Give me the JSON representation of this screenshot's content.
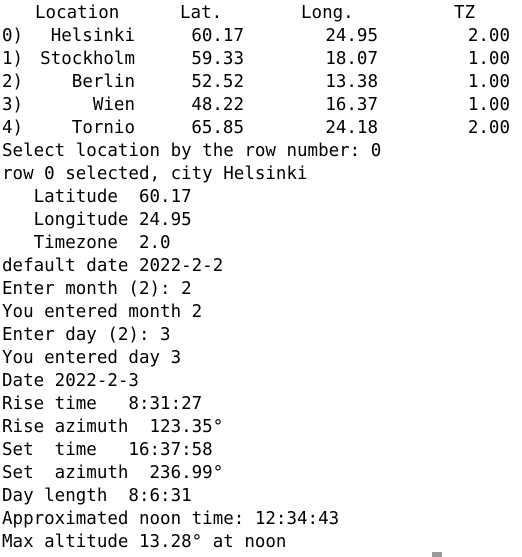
{
  "table": {
    "headers": [
      "Location",
      "Lat.",
      "Long.",
      "TZ"
    ],
    "rows": [
      {
        "index": "0)",
        "city": "Helsinki",
        "lat": "60.17",
        "lon": "24.95",
        "tz": "2.00"
      },
      {
        "index": "1)",
        "city": "Stockholm",
        "lat": "59.33",
        "lon": "18.07",
        "tz": "1.00"
      },
      {
        "index": "2)",
        "city": "Berlin",
        "lat": "52.52",
        "lon": "13.38",
        "tz": "1.00"
      },
      {
        "index": "3)",
        "city": "Wien",
        "lat": "48.22",
        "lon": "16.37",
        "tz": "1.00"
      },
      {
        "index": "4)",
        "city": "Tornio",
        "lat": "65.85",
        "lon": "24.18",
        "tz": "2.00"
      }
    ]
  },
  "output_lines": [
    "Select location by the row number: 0",
    "row 0 selected, city Helsinki",
    "   Latitude  60.17",
    "   Longitude 24.95",
    "   Timezone  2.0",
    "default date 2022-2-2",
    "Enter month (2): 2",
    "You entered month 2",
    "Enter day (2): 3",
    "You entered day 3",
    "Date 2022-2-3",
    "Rise time   8:31:27",
    "Rise azimuth  123.35°",
    "Set  time   16:37:58",
    "Set  azimuth  236.99°",
    "Day length  8:6:31",
    "Approximated noon time: 12:34:43",
    "Max altitude 13.28° at noon"
  ]
}
